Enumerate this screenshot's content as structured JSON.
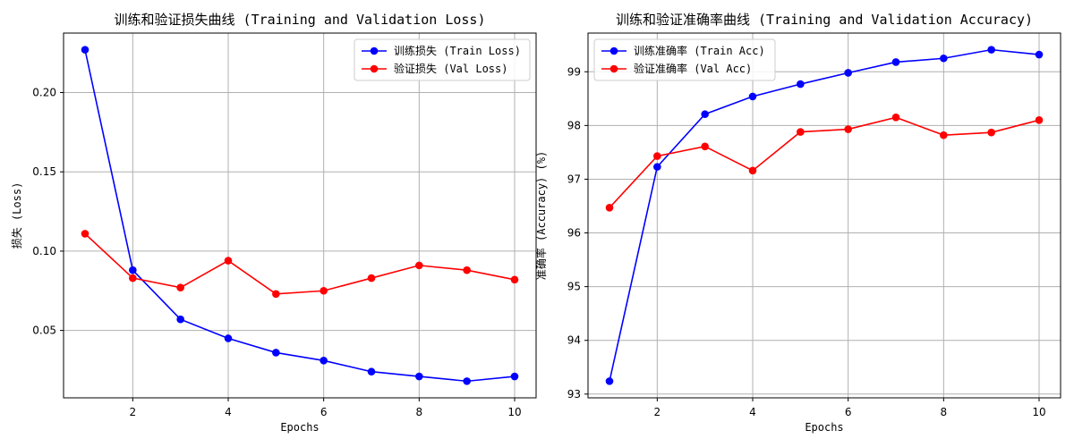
{
  "chart_data": [
    {
      "type": "line",
      "title": "训练和验证损失曲线 (Training and Validation Loss)",
      "xlabel": "Epochs",
      "ylabel": "损失 (Loss)",
      "x": [
        1,
        2,
        3,
        4,
        5,
        6,
        7,
        8,
        9,
        10
      ],
      "xlim": [
        0.55,
        10.45
      ],
      "ylim": [
        0.0075,
        0.2375
      ],
      "xticks": [
        2,
        4,
        6,
        8,
        10
      ],
      "yticks": [
        0.05,
        0.1,
        0.15,
        0.2
      ],
      "ytick_labels": [
        "0.05",
        "0.10",
        "0.15",
        "0.20"
      ],
      "grid": true,
      "legend_position": "top-right",
      "series": [
        {
          "name": "训练损失 (Train Loss)",
          "color": "#0000ff",
          "values": [
            0.227,
            0.088,
            0.057,
            0.045,
            0.036,
            0.031,
            0.024,
            0.021,
            0.018,
            0.021
          ]
        },
        {
          "name": "验证损失 (Val Loss)",
          "color": "#ff0000",
          "values": [
            0.111,
            0.083,
            0.077,
            0.094,
            0.073,
            0.075,
            0.083,
            0.091,
            0.088,
            0.082
          ]
        }
      ]
    },
    {
      "type": "line",
      "title": "训练和验证准确率曲线 (Training and Validation Accuracy)",
      "xlabel": "Epochs",
      "ylabel": "准确率 (Accuracy) (%)",
      "x": [
        1,
        2,
        3,
        4,
        5,
        6,
        7,
        8,
        9,
        10
      ],
      "xlim": [
        0.55,
        10.45
      ],
      "ylim": [
        92.93,
        99.72
      ],
      "xticks": [
        2,
        4,
        6,
        8,
        10
      ],
      "yticks": [
        93,
        94,
        95,
        96,
        97,
        98,
        99
      ],
      "ytick_labels": [
        "93",
        "94",
        "95",
        "96",
        "97",
        "98",
        "99"
      ],
      "grid": true,
      "legend_position": "top-left",
      "series": [
        {
          "name": "训练准确率 (Train Acc)",
          "color": "#0000ff",
          "values": [
            93.24,
            97.23,
            98.21,
            98.54,
            98.77,
            98.98,
            99.18,
            99.25,
            99.41,
            99.32
          ]
        },
        {
          "name": "验证准确率 (Val Acc)",
          "color": "#ff0000",
          "values": [
            96.47,
            97.43,
            97.61,
            97.16,
            97.88,
            97.93,
            98.15,
            97.82,
            97.87,
            98.1
          ]
        }
      ]
    }
  ]
}
